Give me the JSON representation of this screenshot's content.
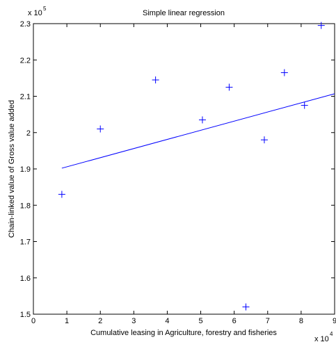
{
  "chart_data": {
    "type": "scatter",
    "title": "Simple linear regression",
    "xlabel": "Cumulative leasing in Agriculture, forestry and fisheries",
    "ylabel": "Chain-linked value of Gross value added",
    "x_multiplier_label": "x 10",
    "x_multiplier_exponent": "4",
    "y_multiplier_label": "x 10",
    "y_multiplier_exponent": "5",
    "xlim": [
      0,
      9
    ],
    "ylim": [
      1.5,
      2.3
    ],
    "x_ticks": [
      "0",
      "1",
      "2",
      "3",
      "4",
      "5",
      "6",
      "7",
      "8",
      "9"
    ],
    "y_ticks": [
      "1.5",
      "1.6",
      "1.7",
      "1.8",
      "1.9",
      "2",
      "2.1",
      "2.2",
      "2.3"
    ],
    "grid": false,
    "marker_color": "#0000ff",
    "series": [
      {
        "marker": "+",
        "x": [
          0.85,
          2.0,
          3.65,
          5.05,
          5.85,
          6.35,
          6.9,
          7.5,
          8.1,
          8.6
        ],
        "y": [
          1.83,
          2.01,
          2.145,
          2.035,
          2.125,
          1.52,
          1.98,
          2.165,
          2.075,
          2.295
        ]
      },
      {
        "line": true,
        "x": [
          0.85,
          9.0
        ],
        "y": [
          1.902,
          2.107
        ]
      }
    ]
  }
}
